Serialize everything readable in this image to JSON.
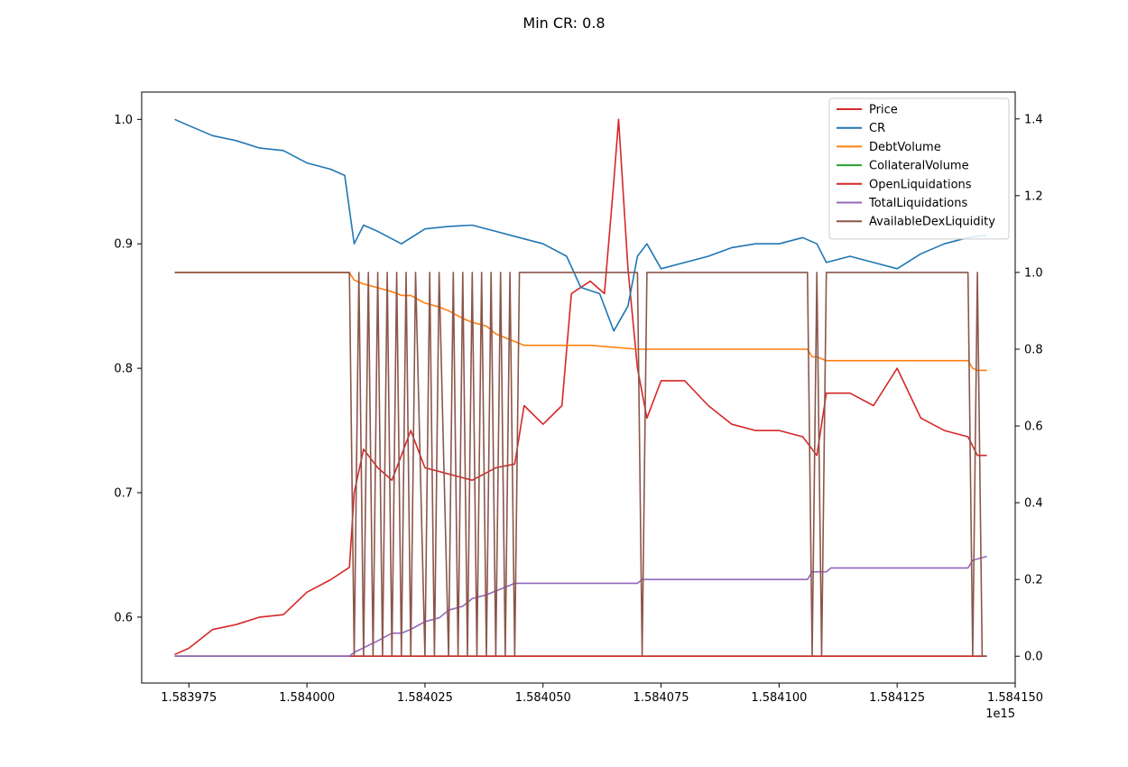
{
  "chart_data": {
    "type": "line",
    "title": "Min CR: 0.8",
    "x_offset_label": "1e15",
    "x_ticks": [
      "1.583975",
      "1.584000",
      "1.584025",
      "1.584050",
      "1.584075",
      "1.584100",
      "1.584125",
      "1.584150"
    ],
    "xlim": [
      1.583965,
      1.58415
    ],
    "left_axis": {
      "ticks": [
        "0.6",
        "0.7",
        "0.8",
        "0.9",
        "1.0"
      ],
      "ylim": [
        0.547,
        1.022
      ]
    },
    "right_axis": {
      "ticks": [
        "0.0",
        "0.2",
        "0.4",
        "0.6",
        "0.8",
        "1.0",
        "1.2",
        "1.4"
      ],
      "ylim": [
        -0.07,
        1.47
      ]
    },
    "legend_position": "top-right",
    "colors": {
      "Price": "#d62728",
      "CR": "#1f77b4",
      "DebtVolume": "#ff7f0e",
      "CollateralVolume": "#2ca02c",
      "OpenLiquidations": "#d62728",
      "TotalLiquidations": "#9467bd",
      "AvailableDexLiquidity": "#8c564b"
    },
    "series": [
      {
        "name": "Price",
        "axis": "left",
        "x": [
          1.583972,
          1.583975,
          1.58398,
          1.583985,
          1.58399,
          1.583995,
          1.584,
          1.584005,
          1.584009,
          1.58401,
          1.584012,
          1.584015,
          1.584018,
          1.58402,
          1.584022,
          1.584025,
          1.58403,
          1.584035,
          1.58404,
          1.584044,
          1.584046,
          1.58405,
          1.584054,
          1.584056,
          1.58406,
          1.584063,
          1.584065,
          1.584066,
          1.584068,
          1.58407,
          1.584072,
          1.584075,
          1.58408,
          1.584085,
          1.58409,
          1.584095,
          1.5841,
          1.584105,
          1.584108,
          1.58411,
          1.584115,
          1.58412,
          1.584125,
          1.58413,
          1.584135,
          1.58414,
          1.584142,
          1.584144
        ],
        "values": [
          0.57,
          0.575,
          0.59,
          0.594,
          0.6,
          0.602,
          0.62,
          0.63,
          0.64,
          0.7,
          0.735,
          0.72,
          0.71,
          0.73,
          0.75,
          0.72,
          0.715,
          0.71,
          0.72,
          0.723,
          0.77,
          0.755,
          0.77,
          0.86,
          0.87,
          0.86,
          0.95,
          1.0,
          0.88,
          0.8,
          0.76,
          0.79,
          0.79,
          0.77,
          0.755,
          0.75,
          0.75,
          0.745,
          0.73,
          0.78,
          0.78,
          0.77,
          0.8,
          0.76,
          0.75,
          0.745,
          0.73,
          0.73
        ]
      },
      {
        "name": "CR",
        "axis": "left",
        "x": [
          1.583972,
          1.583975,
          1.58398,
          1.583985,
          1.58399,
          1.583995,
          1.584,
          1.584005,
          1.584008,
          1.58401,
          1.584012,
          1.584015,
          1.58402,
          1.584025,
          1.58403,
          1.584035,
          1.58404,
          1.584045,
          1.58405,
          1.584055,
          1.584058,
          1.584062,
          1.584065,
          1.584068,
          1.58407,
          1.584072,
          1.584075,
          1.58408,
          1.584085,
          1.58409,
          1.584095,
          1.5841,
          1.584105,
          1.584108,
          1.58411,
          1.584115,
          1.58412,
          1.584125,
          1.58413,
          1.584135,
          1.58414,
          1.584144
        ],
        "values": [
          1.0,
          0.995,
          0.987,
          0.983,
          0.977,
          0.975,
          0.965,
          0.96,
          0.955,
          0.9,
          0.915,
          0.91,
          0.9,
          0.912,
          0.914,
          0.915,
          0.91,
          0.905,
          0.9,
          0.89,
          0.865,
          0.86,
          0.83,
          0.85,
          0.89,
          0.9,
          0.88,
          0.885,
          0.89,
          0.897,
          0.9,
          0.9,
          0.905,
          0.9,
          0.885,
          0.89,
          0.885,
          0.88,
          0.892,
          0.9,
          0.905,
          0.907
        ]
      },
      {
        "name": "DebtVolume",
        "axis": "right",
        "x": [
          1.583972,
          1.584009,
          1.58401,
          1.584012,
          1.584015,
          1.584018,
          1.58402,
          1.584022,
          1.584025,
          1.584028,
          1.58403,
          1.584033,
          1.584035,
          1.584038,
          1.58404,
          1.584042,
          1.584044,
          1.584046,
          1.58405,
          1.58406,
          1.58407,
          1.58408,
          1.58409,
          1.5841,
          1.584106,
          1.584107,
          1.584108,
          1.58411,
          1.58412,
          1.58413,
          1.58414,
          1.584141,
          1.584142,
          1.584144
        ],
        "values": [
          1.0,
          1.0,
          0.98,
          0.97,
          0.96,
          0.95,
          0.94,
          0.94,
          0.92,
          0.91,
          0.9,
          0.88,
          0.87,
          0.86,
          0.84,
          0.83,
          0.82,
          0.81,
          0.81,
          0.81,
          0.8,
          0.8,
          0.8,
          0.8,
          0.8,
          0.78,
          0.78,
          0.77,
          0.77,
          0.77,
          0.77,
          0.75,
          0.745,
          0.745
        ]
      },
      {
        "name": "CollateralVolume",
        "axis": "right",
        "x": [
          1.583972,
          1.584144
        ],
        "values": [
          0.0,
          0.0
        ]
      },
      {
        "name": "OpenLiquidations",
        "axis": "right",
        "x": [
          1.583972,
          1.584144
        ],
        "values": [
          0.0,
          0.0
        ]
      },
      {
        "name": "TotalLiquidations",
        "axis": "right",
        "x": [
          1.583972,
          1.584009,
          1.58401,
          1.584015,
          1.584018,
          1.58402,
          1.584022,
          1.584025,
          1.584028,
          1.58403,
          1.584033,
          1.584035,
          1.584038,
          1.58404,
          1.584042,
          1.584044,
          1.584046,
          1.58407,
          1.584071,
          1.584106,
          1.584107,
          1.58411,
          1.584111,
          1.58414,
          1.584141,
          1.584144
        ],
        "values": [
          0.0,
          0.0,
          0.01,
          0.04,
          0.06,
          0.06,
          0.07,
          0.09,
          0.1,
          0.12,
          0.13,
          0.15,
          0.16,
          0.17,
          0.18,
          0.19,
          0.19,
          0.19,
          0.2,
          0.2,
          0.22,
          0.22,
          0.23,
          0.23,
          0.25,
          0.26
        ]
      },
      {
        "name": "AvailableDexLiquidity",
        "axis": "right",
        "x": [
          1.583972,
          1.584009,
          1.58401,
          1.584011,
          1.584012,
          1.584013,
          1.584014,
          1.584015,
          1.584016,
          1.584017,
          1.584018,
          1.584019,
          1.58402,
          1.584021,
          1.584022,
          1.584023,
          1.584025,
          1.584026,
          1.584027,
          1.584028,
          1.58403,
          1.584031,
          1.584032,
          1.584033,
          1.584034,
          1.584035,
          1.584036,
          1.584037,
          1.584038,
          1.584039,
          1.58404,
          1.584041,
          1.584042,
          1.584043,
          1.584044,
          1.584045,
          1.584046,
          1.58407,
          1.584071,
          1.584072,
          1.584106,
          1.584107,
          1.584108,
          1.584109,
          1.58411,
          1.584111,
          1.58414,
          1.584141,
          1.584142,
          1.584143,
          1.584144
        ],
        "values": [
          1.0,
          1.0,
          0.0,
          1.0,
          0.0,
          1.0,
          0.0,
          1.0,
          0.0,
          1.0,
          0.0,
          1.0,
          0.0,
          1.0,
          0.0,
          1.0,
          0.0,
          1.0,
          0.0,
          1.0,
          0.0,
          1.0,
          0.0,
          1.0,
          0.0,
          1.0,
          0.0,
          1.0,
          0.0,
          1.0,
          0.0,
          1.0,
          0.0,
          1.0,
          0.0,
          1.0,
          1.0,
          1.0,
          0.0,
          1.0,
          1.0,
          0.0,
          1.0,
          0.0,
          1.0,
          1.0,
          1.0,
          0.0,
          1.0,
          0.0,
          0.0
        ]
      }
    ]
  }
}
